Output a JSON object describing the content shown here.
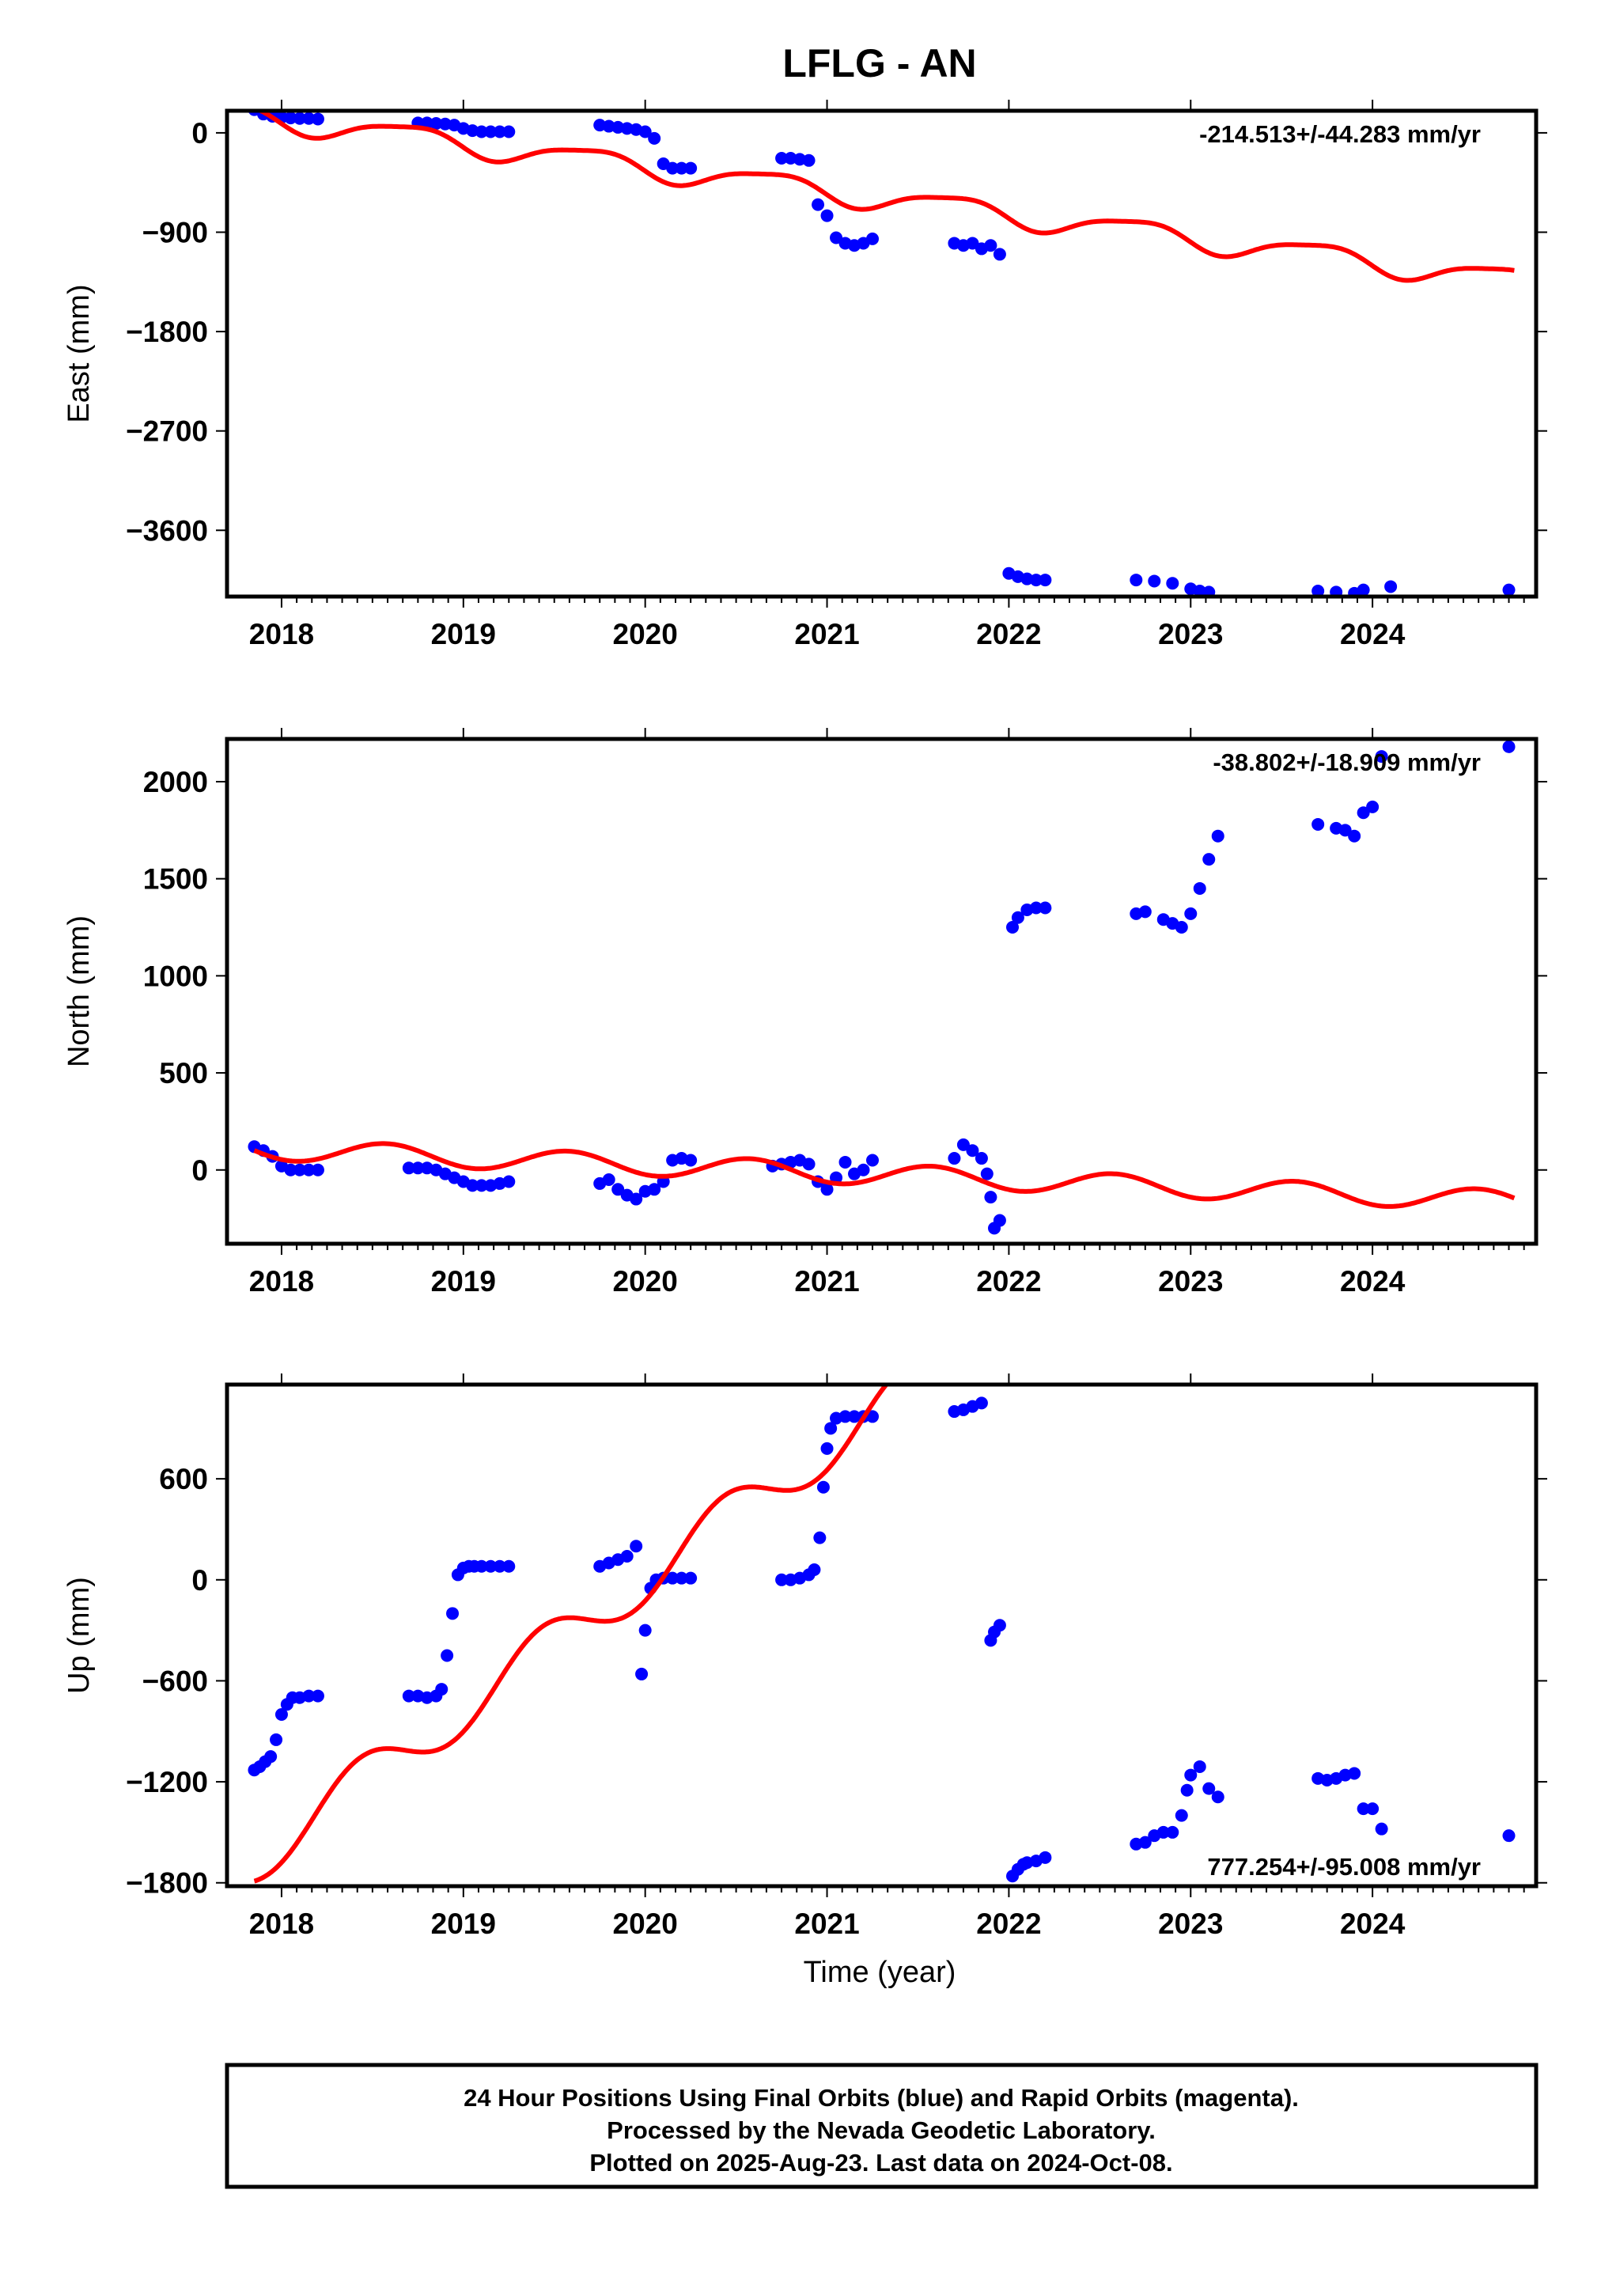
{
  "title": "LFLG - AN",
  "xlabel": "Time (year)",
  "footer": {
    "lines": [
      "24 Hour Positions Using Final Orbits (blue) and Rapid Orbits (magenta).",
      "Processed by the Nevada Geodetic Laboratory.",
      "Plotted on 2025-Aug-23. Last data on 2024-Oct-08."
    ]
  },
  "colors": {
    "data": "#0000ff",
    "model": "#ff0000",
    "frame": "#000000"
  },
  "chart_data": [
    {
      "type": "scatter",
      "component": "east",
      "ylabel": "East (mm)",
      "rate": "-214.513+/-44.283 mm/yr",
      "xlim": [
        2017.7,
        2024.9
      ],
      "ylim": [
        -4200,
        200
      ],
      "xticks": [
        2018,
        2019,
        2020,
        2021,
        2022,
        2023,
        2024
      ],
      "yticks": [
        0,
        -900,
        -1800,
        -2700,
        -3600
      ],
      "grid": false,
      "series": [
        {
          "kind": "points",
          "x": [
            2017.85,
            2017.9,
            2017.95,
            2018.0,
            2018.05,
            2018.1,
            2018.15,
            2018.2,
            2018.75,
            2018.8,
            2018.85,
            2018.9,
            2018.95,
            2019.0,
            2019.05,
            2019.1,
            2019.15,
            2019.2,
            2019.25,
            2019.75,
            2019.8,
            2019.85,
            2019.9,
            2019.95,
            2020.0,
            2020.05,
            2020.1,
            2020.15,
            2020.2,
            2020.25,
            2020.75,
            2020.8,
            2020.85,
            2020.9,
            2020.95,
            2021.0,
            2021.05,
            2021.1,
            2021.15,
            2021.2,
            2021.25,
            2021.7,
            2021.75,
            2021.8,
            2021.85,
            2021.9,
            2021.95,
            2022.0,
            2022.05,
            2022.1,
            2022.15,
            2022.2,
            2022.7,
            2022.8,
            2022.9,
            2023.0,
            2023.05,
            2023.1,
            2023.7,
            2023.8,
            2023.9,
            2023.95,
            2024.1,
            2024.75
          ],
          "y": [
            210,
            170,
            150,
            140,
            135,
            130,
            130,
            125,
            90,
            90,
            85,
            80,
            70,
            40,
            20,
            10,
            10,
            10,
            10,
            70,
            60,
            50,
            40,
            30,
            10,
            -50,
            -280,
            -320,
            -320,
            -320,
            -230,
            -230,
            -240,
            -250,
            -650,
            -750,
            -950,
            -1000,
            -1020,
            -1000,
            -960,
            -1000,
            -1020,
            -1000,
            -1050,
            -1020,
            -1100,
            -3990,
            -4020,
            -4040,
            -4050,
            -4050,
            -4050,
            -4060,
            -4080,
            -4130,
            -4150,
            -4160,
            -4150,
            -4160,
            -4170,
            -4140,
            -4110,
            -4140
          ]
        },
        {
          "kind": "model",
          "x0": 2017.85,
          "y0": 225,
          "rate_per_year": -214.513,
          "annual_amplitude": 105,
          "annual_phase": 2.6,
          "semiannual_amplitude": 25,
          "semiannual_phase": 1.0,
          "x_end": 2024.78
        }
      ]
    },
    {
      "type": "scatter",
      "component": "north",
      "ylabel": "North (mm)",
      "rate": "-38.802+/-18.909 mm/yr",
      "xlim": [
        2017.7,
        2024.9
      ],
      "ylim": [
        -380,
        2220
      ],
      "xticks": [
        2018,
        2019,
        2020,
        2021,
        2022,
        2023,
        2024
      ],
      "yticks": [
        2000,
        1500,
        1000,
        500,
        0
      ],
      "grid": false,
      "series": [
        {
          "kind": "points",
          "x": [
            2017.85,
            2017.9,
            2017.95,
            2018.0,
            2018.05,
            2018.1,
            2018.15,
            2018.2,
            2018.7,
            2018.75,
            2018.8,
            2018.85,
            2018.9,
            2018.95,
            2019.0,
            2019.05,
            2019.1,
            2019.15,
            2019.2,
            2019.25,
            2019.75,
            2019.8,
            2019.85,
            2019.9,
            2019.95,
            2020.0,
            2020.05,
            2020.1,
            2020.15,
            2020.2,
            2020.25,
            2020.7,
            2020.75,
            2020.8,
            2020.85,
            2020.9,
            2020.95,
            2021.0,
            2021.05,
            2021.1,
            2021.15,
            2021.2,
            2021.25,
            2021.7,
            2021.75,
            2021.8,
            2021.85,
            2021.88,
            2021.9,
            2021.92,
            2021.95,
            2022.02,
            2022.05,
            2022.1,
            2022.15,
            2022.2,
            2022.7,
            2022.75,
            2022.85,
            2022.9,
            2022.95,
            2023.0,
            2023.05,
            2023.1,
            2023.15,
            2023.7,
            2023.8,
            2023.85,
            2023.9,
            2023.95,
            2024.0,
            2024.05,
            2024.75
          ],
          "y": [
            120,
            100,
            70,
            20,
            0,
            0,
            0,
            0,
            10,
            10,
            10,
            0,
            -20,
            -40,
            -60,
            -80,
            -80,
            -80,
            -70,
            -60,
            -70,
            -50,
            -100,
            -130,
            -150,
            -110,
            -100,
            -60,
            50,
            60,
            50,
            20,
            30,
            40,
            50,
            30,
            -60,
            -100,
            -40,
            40,
            -20,
            0,
            50,
            60,
            130,
            100,
            60,
            -20,
            -140,
            -300,
            -260,
            1250,
            1300,
            1340,
            1350,
            1350,
            1320,
            1330,
            1290,
            1270,
            1250,
            1320,
            1450,
            1600,
            1720,
            1780,
            1760,
            1750,
            1720,
            1840,
            1870,
            2130,
            2180
          ]
        },
        {
          "kind": "model",
          "x0": 2017.85,
          "y0": 100,
          "rate_per_year": -38.802,
          "annual_amplitude": 55,
          "annual_phase": 3.3,
          "semiannual_amplitude": 0,
          "semiannual_phase": 0,
          "x_end": 2024.78
        }
      ]
    },
    {
      "type": "scatter",
      "component": "up",
      "ylabel": "Up (mm)",
      "rate": "777.254+/-95.008 mm/yr",
      "xlim": [
        2017.7,
        2024.9
      ],
      "ylim": [
        -1820,
        1160
      ],
      "xticks": [
        2018,
        2019,
        2020,
        2021,
        2022,
        2023,
        2024
      ],
      "yticks": [
        600,
        0,
        -600,
        -1200,
        -1800
      ],
      "grid": false,
      "series": [
        {
          "kind": "points",
          "x": [
            2017.85,
            2017.88,
            2017.91,
            2017.94,
            2017.97,
            2018.0,
            2018.03,
            2018.06,
            2018.1,
            2018.15,
            2018.2,
            2018.7,
            2018.75,
            2018.8,
            2018.85,
            2018.88,
            2018.91,
            2018.94,
            2018.97,
            2019.0,
            2019.03,
            2019.06,
            2019.1,
            2019.15,
            2019.2,
            2019.25,
            2019.75,
            2019.8,
            2019.85,
            2019.9,
            2019.95,
            2019.98,
            2020.0,
            2020.03,
            2020.06,
            2020.1,
            2020.15,
            2020.2,
            2020.25,
            2020.75,
            2020.8,
            2020.85,
            2020.9,
            2020.93,
            2020.96,
            2020.98,
            2021.0,
            2021.02,
            2021.05,
            2021.1,
            2021.15,
            2021.2,
            2021.25,
            2021.7,
            2021.75,
            2021.8,
            2021.85,
            2021.9,
            2021.92,
            2021.95,
            2022.02,
            2022.05,
            2022.08,
            2022.1,
            2022.15,
            2022.2,
            2022.7,
            2022.75,
            2022.8,
            2022.85,
            2022.9,
            2022.95,
            2022.98,
            2023.0,
            2023.05,
            2023.1,
            2023.15,
            2023.7,
            2023.75,
            2023.8,
            2023.85,
            2023.9,
            2023.95,
            2024.0,
            2024.05,
            2024.75
          ],
          "y": [
            -1130,
            -1110,
            -1080,
            -1050,
            -950,
            -800,
            -740,
            -700,
            -700,
            -690,
            -690,
            -690,
            -690,
            -700,
            -690,
            -650,
            -450,
            -200,
            30,
            70,
            80,
            80,
            80,
            80,
            80,
            80,
            80,
            100,
            120,
            140,
            200,
            -560,
            -300,
            -50,
            0,
            10,
            10,
            10,
            10,
            0,
            0,
            10,
            30,
            60,
            250,
            550,
            780,
            900,
            960,
            970,
            970,
            970,
            970,
            1000,
            1010,
            1030,
            1050,
            -360,
            -310,
            -270,
            -1760,
            -1720,
            -1690,
            -1680,
            -1670,
            -1650,
            -1570,
            -1560,
            -1520,
            -1500,
            -1500,
            -1400,
            -1250,
            -1160,
            -1110,
            -1240,
            -1290,
            -1180,
            -1190,
            -1180,
            -1160,
            -1150,
            -1360,
            -1360,
            -1480,
            -1520
          ]
        },
        {
          "kind": "model",
          "x0": 2017.85,
          "y0": -1790,
          "rate_per_year": 777.254,
          "annual_amplitude": 150,
          "annual_phase": 4.2,
          "semiannual_amplitude": 0,
          "semiannual_phase": 0,
          "x_end": 2021.52
        }
      ]
    }
  ]
}
